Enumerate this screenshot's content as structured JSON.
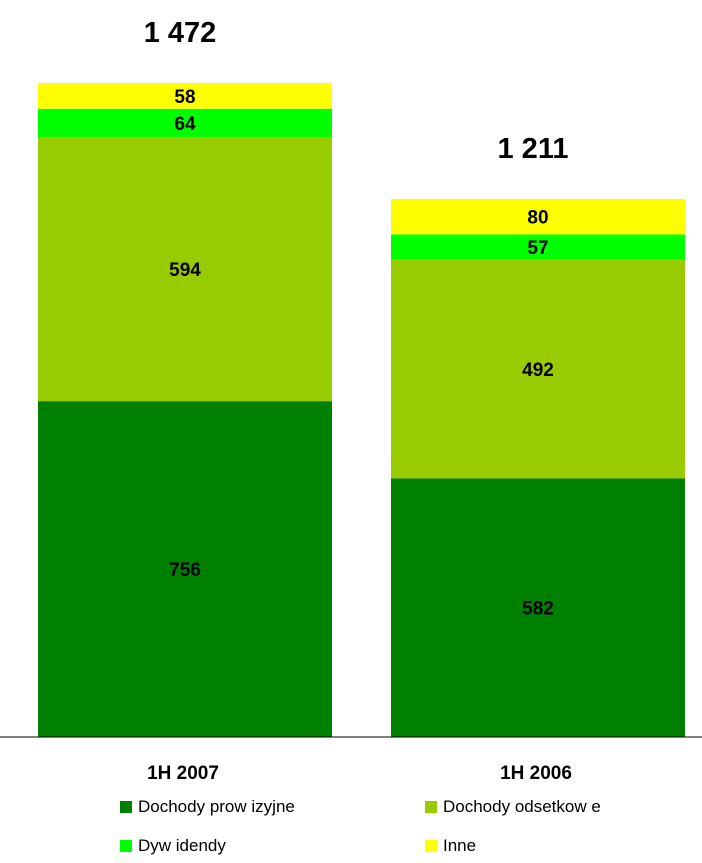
{
  "chart_data": {
    "type": "bar",
    "stacked": true,
    "categories": [
      "1H 2007",
      "1H 2006"
    ],
    "totals": [
      "1 472",
      "1 211"
    ],
    "series": [
      {
        "name": "Dochody prow izyjne",
        "values": [
          756,
          582
        ],
        "color": "#008000"
      },
      {
        "name": "Dochody odsetkow e",
        "values": [
          594,
          492
        ],
        "color": "#99CC00"
      },
      {
        "name": "Dyw idendy",
        "values": [
          64,
          57
        ],
        "color": "#00FF00"
      },
      {
        "name": "Inne",
        "values": [
          58,
          80
        ],
        "color": "#FFFF00"
      }
    ],
    "ylim": [
      0,
      1472
    ],
    "grid": false,
    "legend_position": "bottom"
  }
}
